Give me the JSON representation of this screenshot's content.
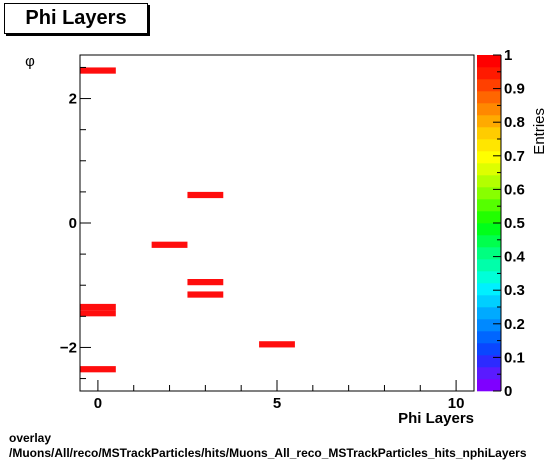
{
  "title": "Phi Layers",
  "footer": {
    "line1": "overlay",
    "line2": "/Muons/All/reco/MSTrackParticles/hits/Muons_All_reco_MSTrackParticles_hits_nphiLayers"
  },
  "chart_data": {
    "type": "heatmap",
    "title": "Phi Layers",
    "xlabel": "Phi Layers",
    "ylabel": "φ",
    "zlabel": "Entries",
    "xlim": [
      -0.5,
      10.5
    ],
    "ylim": [
      -2.7,
      2.7
    ],
    "xticks": [
      0,
      5,
      10
    ],
    "yticks": [
      -2,
      0,
      2
    ],
    "zlim": [
      0,
      1
    ],
    "zticks": [
      "0",
      "0.1",
      "0.2",
      "0.3",
      "0.4",
      "0.5",
      "0.6",
      "0.7",
      "0.8",
      "0.9",
      "1"
    ],
    "bin_width_y": 0.1,
    "cells": [
      {
        "x": 0,
        "y": 2.45,
        "value": 1
      },
      {
        "x": 0,
        "y": -1.35,
        "value": 1
      },
      {
        "x": 0,
        "y": -1.45,
        "value": 1
      },
      {
        "x": 0,
        "y": -2.35,
        "value": 1
      },
      {
        "x": 2,
        "y": -0.35,
        "value": 1
      },
      {
        "x": 3,
        "y": 0.45,
        "value": 1
      },
      {
        "x": 3,
        "y": -0.95,
        "value": 1
      },
      {
        "x": 3,
        "y": -1.15,
        "value": 1
      },
      {
        "x": 5,
        "y": -1.95,
        "value": 1
      }
    ],
    "cell_color": "#ff0d0d",
    "palette": [
      "#7f00ff",
      "#5a1bff",
      "#2d2bff",
      "#0a46ff",
      "#0066ff",
      "#0089ff",
      "#00aaff",
      "#00cfff",
      "#00f0ff",
      "#00ffd9",
      "#00ffaa",
      "#00ff80",
      "#00ff4d",
      "#00ff1a",
      "#22ff00",
      "#55ff00",
      "#88ff00",
      "#b3ff00",
      "#ddff00",
      "#ffff00",
      "#ffe600",
      "#ffcc00",
      "#ffaa00",
      "#ff8800",
      "#ff6600",
      "#ff4000",
      "#ff1a00",
      "#ff0000"
    ]
  }
}
